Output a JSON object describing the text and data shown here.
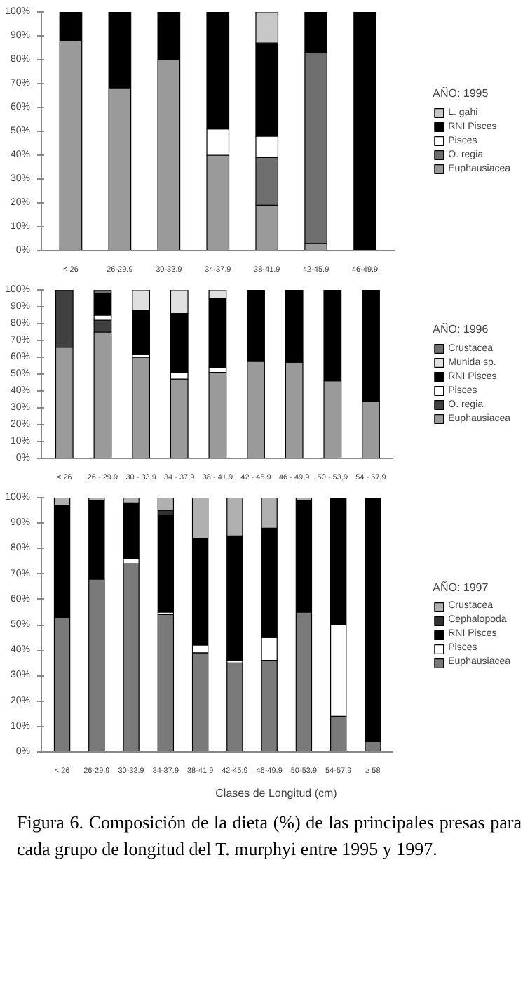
{
  "chart_data": [
    {
      "type": "bar",
      "stacked": true,
      "legend": "right",
      "legend_title": "AÑO: 1995",
      "grid": false,
      "categories": [
        "< 26",
        "26-29.9",
        "30-33.9",
        "34-37.9",
        "38-41.9",
        "42-45.9",
        "46-49.9"
      ],
      "ylim": [
        0,
        100
      ],
      "yticks": [
        {
          "value": 0,
          "label": "0%"
        },
        {
          "value": 10,
          "label": "10%"
        },
        {
          "value": 20,
          "label": "20%"
        },
        {
          "value": 30,
          "label": "30%"
        },
        {
          "value": 40,
          "label": "40%"
        },
        {
          "value": 50,
          "label": "50%"
        },
        {
          "value": 60,
          "label": "60%"
        },
        {
          "value": 70,
          "label": "70%"
        },
        {
          "value": 80,
          "label": "80%"
        },
        {
          "value": 90,
          "label": "90%"
        },
        {
          "value": 100,
          "label": "100%"
        }
      ],
      "series": [
        {
          "name": "Euphausiacea",
          "color": "#9a9a9a",
          "values": [
            88,
            68,
            80,
            40,
            19,
            3,
            0
          ]
        },
        {
          "name": "O. regia",
          "color": "#6e6e6e",
          "values": [
            0,
            0,
            0,
            0,
            20,
            80,
            0
          ]
        },
        {
          "name": "Pisces",
          "color": "#ffffff",
          "values": [
            0,
            0,
            0,
            11,
            9,
            0,
            0
          ]
        },
        {
          "name": "RNI Pisces",
          "color": "#000000",
          "values": [
            12,
            32,
            20,
            49,
            39,
            17,
            100
          ]
        },
        {
          "name": "L. gahi",
          "color": "#c8c8c8",
          "values": [
            0,
            0,
            0,
            0,
            13,
            0,
            0
          ]
        }
      ]
    },
    {
      "type": "bar",
      "stacked": true,
      "legend": "right",
      "legend_title": "AÑO: 1996",
      "grid": false,
      "categories": [
        "< 26",
        "26 - 29.9",
        "30 - 33,9",
        "34 - 37,9",
        "38 - 41.9",
        "42 - 45,9",
        "46 - 49,9",
        "50 - 53,9",
        "54 - 57,9"
      ],
      "ylim": [
        0,
        100
      ],
      "yticks": [
        {
          "value": 0,
          "label": "0%"
        },
        {
          "value": 10,
          "label": "10%"
        },
        {
          "value": 20,
          "label": "20%"
        },
        {
          "value": 30,
          "label": "30%"
        },
        {
          "value": 40,
          "label": "40%"
        },
        {
          "value": 50,
          "label": "50%"
        },
        {
          "value": 60,
          "label": "60%"
        },
        {
          "value": 70,
          "label": "70%"
        },
        {
          "value": 80,
          "label": "80%"
        },
        {
          "value": 90,
          "label": "90%"
        },
        {
          "value": 100,
          "label": "100%"
        }
      ],
      "series": [
        {
          "name": "Euphausiacea",
          "color": "#9a9a9a",
          "values": [
            66,
            75,
            60,
            47,
            51,
            58,
            57,
            46,
            34
          ]
        },
        {
          "name": "O. regia",
          "color": "#404040",
          "values": [
            34,
            7,
            0,
            0,
            0,
            0,
            0,
            0,
            0
          ]
        },
        {
          "name": "Pisces",
          "color": "#ffffff",
          "values": [
            0,
            3,
            2,
            4,
            3,
            0,
            0,
            0,
            0
          ]
        },
        {
          "name": "RNI Pisces",
          "color": "#000000",
          "values": [
            0,
            13,
            26,
            35,
            41,
            42,
            43,
            54,
            66
          ]
        },
        {
          "name": "Munida sp.",
          "color": "#e0e0e0",
          "values": [
            0,
            0,
            12,
            14,
            5,
            0,
            0,
            0,
            0
          ]
        },
        {
          "name": "Crustacea",
          "color": "#707070",
          "values": [
            0,
            2,
            0,
            0,
            0,
            0,
            0,
            0,
            0
          ]
        }
      ]
    },
    {
      "type": "bar",
      "stacked": true,
      "legend": "right",
      "legend_title": "AÑO: 1997",
      "grid": false,
      "xlabel": "Clases de Longitud (cm)",
      "categories": [
        "< 26",
        "26-29.9",
        "30-33.9",
        "34-37.9",
        "38-41.9",
        "42-45.9",
        "46-49.9",
        "50-53.9",
        "54-57.9",
        "≥ 58"
      ],
      "ylim": [
        0,
        100
      ],
      "yticks": [
        {
          "value": 0,
          "label": "0%"
        },
        {
          "value": 10,
          "label": "10%"
        },
        {
          "value": 20,
          "label": "20%"
        },
        {
          "value": 30,
          "label": "30%"
        },
        {
          "value": 40,
          "label": "40%"
        },
        {
          "value": 50,
          "label": "50%"
        },
        {
          "value": 60,
          "label": "60%"
        },
        {
          "value": 70,
          "label": "70%"
        },
        {
          "value": 80,
          "label": "80%"
        },
        {
          "value": 90,
          "label": "90%"
        },
        {
          "value": 100,
          "label": "100%"
        }
      ],
      "series": [
        {
          "name": "Euphausiacea",
          "color": "#7a7a7a",
          "values": [
            53,
            68,
            74,
            54,
            39,
            35,
            36,
            55,
            14,
            4
          ]
        },
        {
          "name": "Pisces",
          "color": "#ffffff",
          "values": [
            0,
            0,
            2,
            1,
            3,
            1,
            9,
            0,
            36,
            0
          ]
        },
        {
          "name": "RNI Pisces",
          "color": "#000000",
          "values": [
            44,
            31,
            22,
            38,
            42,
            49,
            43,
            44,
            50,
            96
          ]
        },
        {
          "name": "Cephalopoda",
          "color": "#303030",
          "values": [
            0,
            0,
            0,
            2,
            0,
            0,
            0,
            0,
            0,
            0
          ]
        },
        {
          "name": "Crustacea",
          "color": "#b0b0b0",
          "values": [
            3,
            1,
            2,
            5,
            16,
            15,
            12,
            1,
            0,
            0
          ]
        }
      ],
      "annotations": [
        "Figura 6.  Composición de la dieta (%) de las principales presas para cada grupo de longitud del T. murphyi entre 1995 y 1997."
      ]
    }
  ]
}
